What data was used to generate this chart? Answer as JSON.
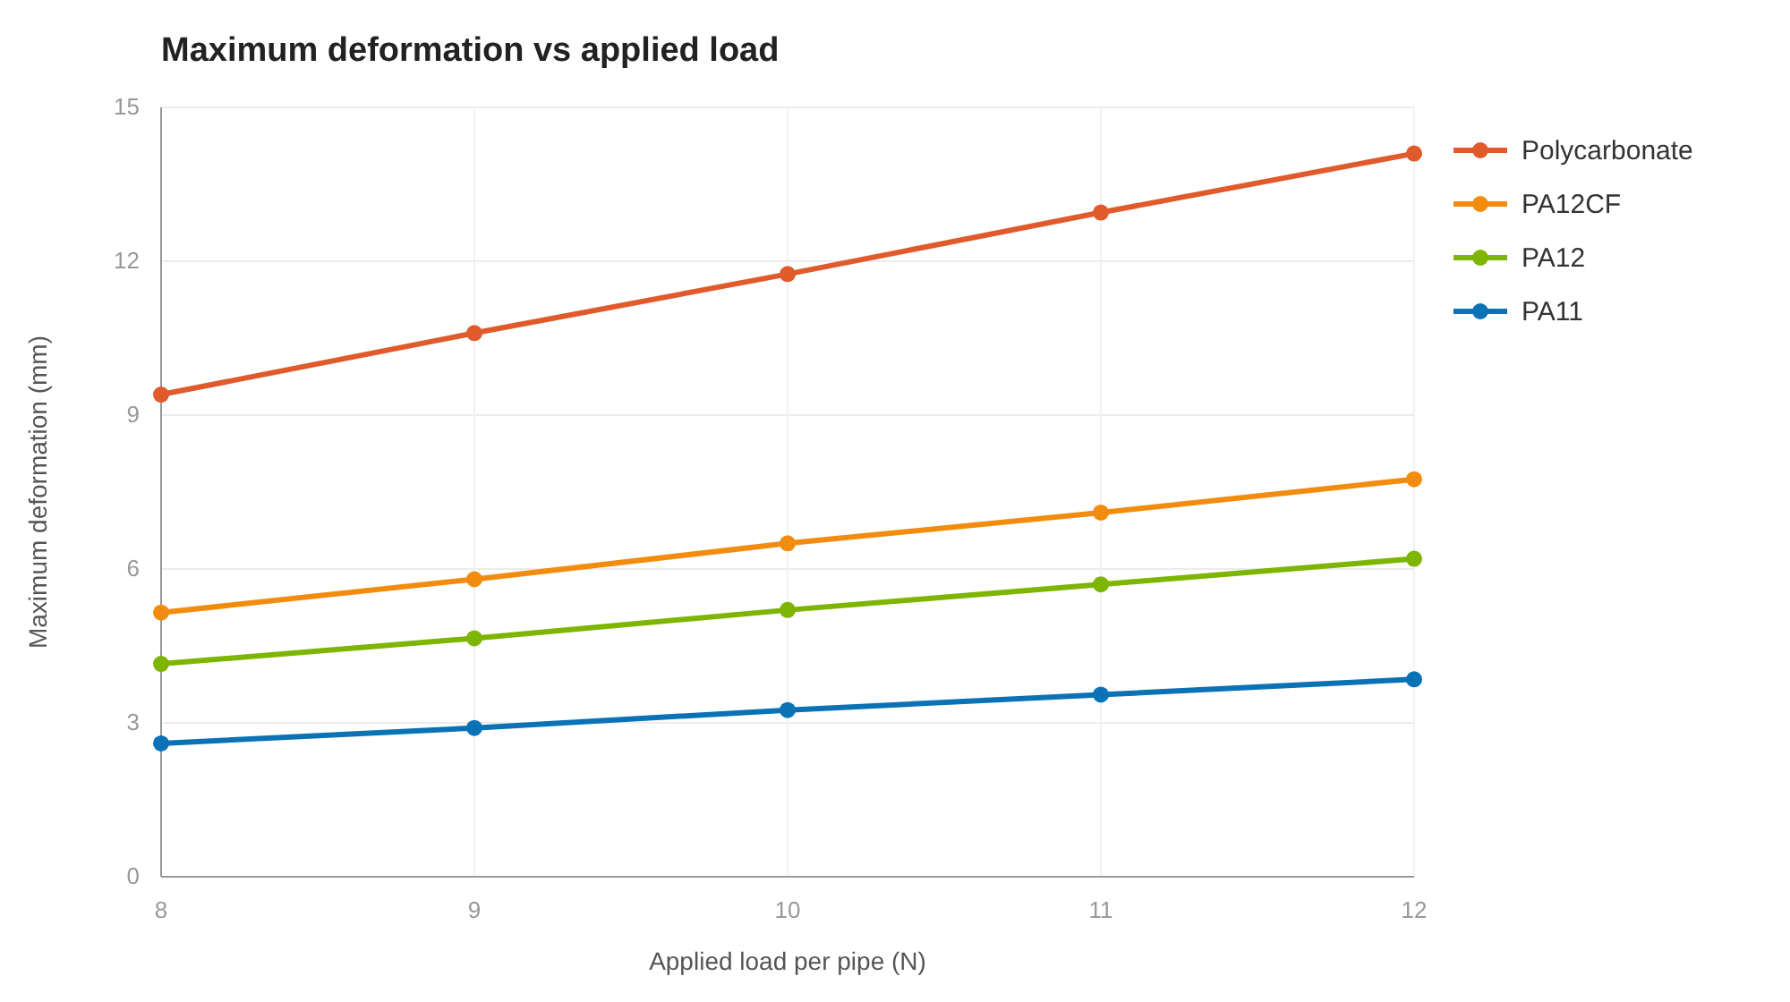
{
  "chart_data": {
    "type": "line",
    "title": "Maximum deformation vs applied load",
    "xlabel": "Applied load per pipe (N)",
    "ylabel": "Maximum deformation (mm)",
    "x": [
      8,
      9,
      10,
      11,
      12
    ],
    "xlim": [
      8,
      12
    ],
    "xticks": [
      8,
      9,
      10,
      11,
      12
    ],
    "ylim": [
      0,
      15
    ],
    "yticks": [
      0,
      3,
      6,
      9,
      12,
      15
    ],
    "grid": true,
    "legend": "top right",
    "marker": "circle",
    "line_style": "solid",
    "series": [
      {
        "name": "Polycarbonate",
        "color": "#e05a2b",
        "values": [
          9.4,
          10.6,
          11.75,
          12.95,
          14.1
        ]
      },
      {
        "name": "PA12CF",
        "color": "#f28c0f",
        "values": [
          5.15,
          5.8,
          6.5,
          7.1,
          7.75
        ]
      },
      {
        "name": "PA12",
        "color": "#7db500",
        "values": [
          4.15,
          4.65,
          5.2,
          5.7,
          6.2
        ]
      },
      {
        "name": "PA11",
        "color": "#0a72b5",
        "values": [
          2.6,
          2.9,
          3.25,
          3.55,
          3.85
        ]
      }
    ]
  }
}
